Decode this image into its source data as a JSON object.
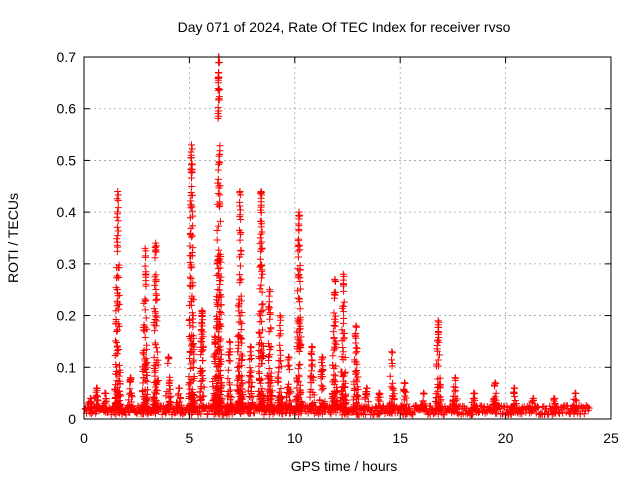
{
  "chart_data": {
    "type": "scatter",
    "title": "Day 071 of 2024, Rate Of TEC Index for receiver rvso",
    "xlabel": "GPS time / hours",
    "ylabel": "ROTI / TECUs",
    "xlim": [
      0,
      25
    ],
    "ylim": [
      0,
      0.7
    ],
    "x_ticks": [
      0,
      5,
      10,
      15,
      20,
      25
    ],
    "y_ticks": [
      0,
      0.1,
      0.2,
      0.3,
      0.4,
      0.5,
      0.6,
      0.7
    ],
    "x_tick_labels": [
      "0",
      "5",
      "10",
      "15",
      "20",
      "25"
    ],
    "y_tick_labels": [
      "0",
      "0.1",
      "0.2",
      "0.3",
      "0.4",
      "0.5",
      "0.6",
      "0.7"
    ],
    "grid": true,
    "marker": "+",
    "marker_color": "#ff0000",
    "data_x_range": [
      0,
      24
    ],
    "baseline_roti": 0.02,
    "series": [
      {
        "name": "ROTI",
        "bursts": [
          {
            "x": 0.3,
            "peak": 0.04
          },
          {
            "x": 0.6,
            "peak": 0.06
          },
          {
            "x": 1.0,
            "peak": 0.05
          },
          {
            "x": 1.6,
            "peak": 0.44
          },
          {
            "x": 2.2,
            "peak": 0.08
          },
          {
            "x": 2.9,
            "peak": 0.33
          },
          {
            "x": 3.4,
            "peak": 0.34
          },
          {
            "x": 4.0,
            "peak": 0.12
          },
          {
            "x": 4.5,
            "peak": 0.06
          },
          {
            "x": 5.1,
            "peak": 0.53
          },
          {
            "x": 5.6,
            "peak": 0.21
          },
          {
            "x": 6.2,
            "peak": 0.16
          },
          {
            "x": 6.4,
            "peak": 0.7
          },
          {
            "x": 6.9,
            "peak": 0.15
          },
          {
            "x": 7.4,
            "peak": 0.44
          },
          {
            "x": 7.9,
            "peak": 0.14
          },
          {
            "x": 8.4,
            "peak": 0.44
          },
          {
            "x": 8.8,
            "peak": 0.25
          },
          {
            "x": 9.3,
            "peak": 0.2
          },
          {
            "x": 9.7,
            "peak": 0.12
          },
          {
            "x": 10.2,
            "peak": 0.4
          },
          {
            "x": 10.8,
            "peak": 0.14
          },
          {
            "x": 11.3,
            "peak": 0.12
          },
          {
            "x": 11.9,
            "peak": 0.27
          },
          {
            "x": 12.3,
            "peak": 0.28
          },
          {
            "x": 12.9,
            "peak": 0.18
          },
          {
            "x": 13.4,
            "peak": 0.06
          },
          {
            "x": 14.0,
            "peak": 0.05
          },
          {
            "x": 14.6,
            "peak": 0.13
          },
          {
            "x": 15.2,
            "peak": 0.07
          },
          {
            "x": 16.1,
            "peak": 0.05
          },
          {
            "x": 16.8,
            "peak": 0.19
          },
          {
            "x": 17.6,
            "peak": 0.08
          },
          {
            "x": 18.5,
            "peak": 0.05
          },
          {
            "x": 19.5,
            "peak": 0.07
          },
          {
            "x": 20.4,
            "peak": 0.06
          },
          {
            "x": 21.3,
            "peak": 0.04
          },
          {
            "x": 22.3,
            "peak": 0.04
          },
          {
            "x": 23.3,
            "peak": 0.05
          }
        ]
      }
    ]
  }
}
